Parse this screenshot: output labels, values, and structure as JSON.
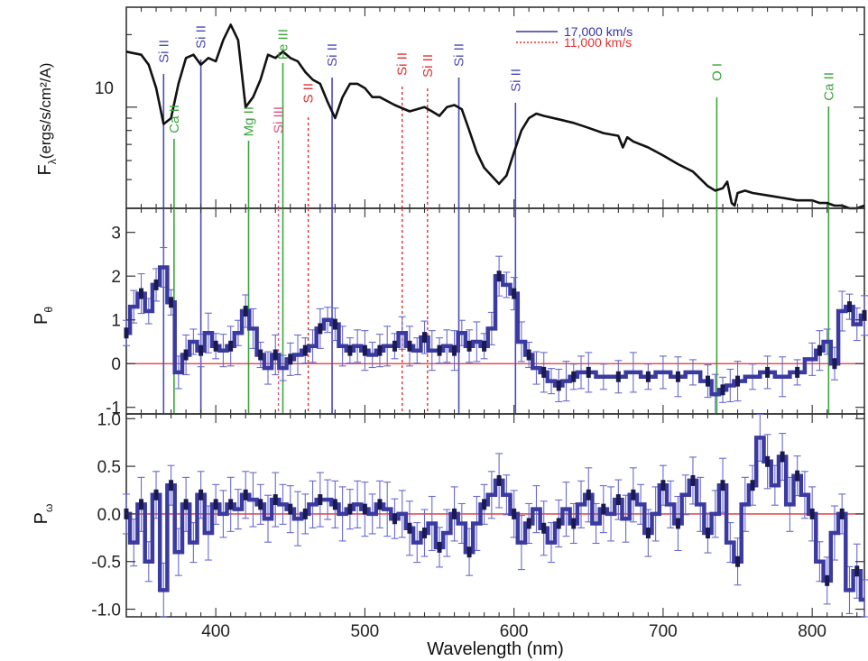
{
  "chart_data": [
    {
      "type": "line",
      "panel": "flux",
      "ylabel": "F",
      "ylabel_sub": "λ",
      "ylabel_units": "(ergs/s/cm²/A)",
      "y_tick": "10",
      "x_range": [
        340,
        835
      ],
      "y_range": [
        3.8,
        26
      ],
      "y_scale": "log",
      "series": [
        {
          "x": [
            340,
            350,
            355,
            360,
            365,
            370,
            375,
            380,
            385,
            390,
            395,
            400,
            405,
            410,
            415,
            420,
            425,
            430,
            435,
            440,
            445,
            450,
            455,
            460,
            465,
            470,
            475,
            480,
            485,
            490,
            495,
            500,
            505,
            510,
            520,
            530,
            540,
            545,
            550,
            555,
            560,
            565,
            570,
            575,
            580,
            590,
            595,
            600,
            605,
            610,
            615,
            620,
            630,
            640,
            650,
            660,
            670,
            673,
            676,
            680,
            690,
            700,
            710,
            720,
            730,
            735,
            740,
            743,
            746,
            748,
            750,
            755,
            760,
            770,
            780,
            790,
            800,
            805,
            810,
            815,
            820,
            825,
            830,
            835
          ],
          "y": [
            17,
            16.5,
            15,
            12,
            8.5,
            9,
            12.5,
            16,
            16.5,
            15,
            16,
            15.5,
            19,
            22,
            19,
            10,
            11,
            13,
            16.5,
            16,
            17,
            16,
            15.5,
            14,
            13,
            12.5,
            10.5,
            9,
            11,
            12.5,
            12.5,
            12,
            11,
            11,
            10.2,
            9.6,
            10,
            9.6,
            9.2,
            10,
            10.2,
            9.8,
            8,
            6.5,
            5.6,
            4.8,
            5.2,
            6.5,
            8,
            9,
            9.4,
            9.2,
            8.9,
            8.6,
            8.2,
            7.8,
            7.6,
            6.8,
            7.5,
            7.2,
            6.8,
            6.3,
            5.8,
            5.4,
            4.7,
            4.5,
            4.6,
            4.9,
            4,
            3.9,
            4.4,
            4.5,
            4.4,
            4.3,
            4.2,
            4.1,
            4.1,
            4,
            4,
            3.9,
            3.9,
            3.8,
            3.8,
            3.9
          ],
          "color": "#111111"
        }
      ],
      "legend": [
        {
          "label": "17,000 km/s",
          "color": "#3333aa",
          "style": "solid"
        },
        {
          "label": "11,000 km/s",
          "color": "#e03030",
          "style": "dotted"
        }
      ],
      "annotations": [
        {
          "label": "Si II",
          "x": 365,
          "color": "#4a4ab8",
          "style": "solid",
          "group": "17000"
        },
        {
          "label": "Ca II",
          "x": 372,
          "color": "#3aa63a",
          "style": "solid",
          "group": "17000"
        },
        {
          "label": "Si II",
          "x": 390,
          "color": "#4a4ab8",
          "style": "solid",
          "group": "17000"
        },
        {
          "label": "Mg II",
          "x": 422,
          "color": "#3aa63a",
          "style": "solid",
          "group": "17000"
        },
        {
          "label": "Fe III",
          "x": 445,
          "color": "#3aa63a",
          "style": "solid",
          "group": "17000"
        },
        {
          "label": "Si III",
          "x": 442,
          "color": "#e05080",
          "style": "dotted",
          "group": "11000"
        },
        {
          "label": "S II",
          "x": 462,
          "color": "#e03030",
          "style": "dotted",
          "group": "11000"
        },
        {
          "label": "Si II",
          "x": 478,
          "color": "#4a4ab8",
          "style": "solid",
          "group": "17000"
        },
        {
          "label": "Si II",
          "x": 525,
          "color": "#e03030",
          "style": "dotted",
          "group": "11000"
        },
        {
          "label": "Si II",
          "x": 542,
          "color": "#e03030",
          "style": "dotted",
          "group": "11000"
        },
        {
          "label": "Si II",
          "x": 563,
          "color": "#4a4ab8",
          "style": "solid",
          "group": "17000"
        },
        {
          "label": "Si II",
          "x": 601,
          "color": "#4a4ab8",
          "style": "solid",
          "group": "17000"
        },
        {
          "label": "O I",
          "x": 736,
          "color": "#3aa63a",
          "style": "solid",
          "group": "17000"
        },
        {
          "label": "Ca II",
          "x": 811,
          "color": "#3aa63a",
          "style": "solid",
          "group": "17000"
        }
      ]
    },
    {
      "type": "line",
      "panel": "p_theta",
      "ylabel": "P",
      "ylabel_sub": "θ",
      "x_range": [
        340,
        835
      ],
      "y_range": [
        -1.15,
        3.55
      ],
      "y_ticks": [
        "3",
        "2",
        "1",
        "0",
        "-1"
      ],
      "y_tick_values": [
        3,
        2,
        1,
        0,
        -1
      ],
      "zero_line_color": "#e03030",
      "series": [
        {
          "x": [
            340,
            345,
            350,
            355,
            360,
            365,
            370,
            375,
            380,
            385,
            390,
            395,
            400,
            405,
            410,
            415,
            420,
            425,
            430,
            435,
            440,
            445,
            450,
            455,
            460,
            465,
            470,
            475,
            480,
            485,
            490,
            495,
            500,
            505,
            510,
            515,
            520,
            525,
            530,
            535,
            540,
            545,
            550,
            555,
            560,
            565,
            570,
            575,
            580,
            585,
            590,
            595,
            600,
            605,
            610,
            615,
            620,
            625,
            630,
            635,
            640,
            645,
            650,
            660,
            670,
            680,
            690,
            700,
            710,
            720,
            730,
            735,
            740,
            745,
            750,
            760,
            770,
            780,
            790,
            800,
            805,
            810,
            815,
            820,
            825,
            830,
            835
          ],
          "y": [
            0.7,
            1.3,
            1.6,
            1.2,
            1.8,
            2.2,
            1.4,
            -0.2,
            0.2,
            0.5,
            0.3,
            0.7,
            0.4,
            0.3,
            0.4,
            0.7,
            1.2,
            0.8,
            0.2,
            -0.1,
            0.2,
            -0.1,
            0.1,
            0.2,
            0.3,
            0.4,
            0.8,
            1.0,
            0.9,
            0.4,
            0.3,
            0.4,
            0.3,
            0.2,
            0.3,
            0.4,
            0.4,
            0.7,
            0.4,
            0.3,
            0.6,
            0.3,
            0.3,
            0.4,
            0.3,
            0.7,
            0.4,
            0.5,
            0.4,
            0.8,
            2.0,
            1.8,
            1.6,
            0.5,
            0.2,
            -0.1,
            -0.2,
            -0.4,
            -0.5,
            -0.4,
            -0.3,
            -0.2,
            -0.2,
            -0.3,
            -0.3,
            -0.2,
            -0.3,
            -0.2,
            -0.3,
            -0.2,
            -0.4,
            -0.7,
            -0.6,
            -0.5,
            -0.4,
            -0.3,
            -0.2,
            -0.3,
            -0.2,
            0.1,
            0.3,
            0.5,
            0.0,
            1.2,
            1.3,
            0.9,
            1.1
          ],
          "color": "#3a3aa0",
          "errorbar_color": "#6a6ad0"
        }
      ]
    },
    {
      "type": "line",
      "panel": "p_omega",
      "ylabel": "P",
      "ylabel_sub": "ω",
      "xlabel": "Wavelength (nm)",
      "x_range": [
        340,
        835
      ],
      "y_range": [
        -1.08,
        1.05
      ],
      "x_ticks": [
        "400",
        "500",
        "600",
        "700",
        "800"
      ],
      "x_tick_values": [
        400,
        500,
        600,
        700,
        800
      ],
      "y_ticks": [
        "1.0",
        "0.5",
        "0.0",
        "-0.5",
        "-1.0"
      ],
      "y_tick_values": [
        1.0,
        0.5,
        0.0,
        -0.5,
        -1.0
      ],
      "zero_line_color": "#e03030",
      "series": [
        {
          "x": [
            340,
            345,
            350,
            355,
            360,
            365,
            370,
            375,
            380,
            385,
            390,
            395,
            400,
            405,
            410,
            415,
            420,
            425,
            430,
            435,
            440,
            445,
            450,
            455,
            460,
            465,
            470,
            475,
            480,
            485,
            490,
            495,
            500,
            505,
            510,
            515,
            520,
            525,
            530,
            535,
            540,
            545,
            550,
            555,
            560,
            565,
            570,
            575,
            580,
            585,
            590,
            595,
            600,
            605,
            610,
            615,
            620,
            625,
            630,
            635,
            640,
            645,
            650,
            655,
            660,
            665,
            670,
            675,
            680,
            685,
            690,
            695,
            700,
            705,
            710,
            715,
            720,
            725,
            730,
            735,
            740,
            745,
            750,
            755,
            760,
            765,
            770,
            775,
            780,
            785,
            790,
            795,
            800,
            805,
            810,
            815,
            820,
            825,
            830,
            835
          ],
          "y": [
            0.0,
            -0.3,
            0.1,
            -0.5,
            0.2,
            -0.8,
            0.3,
            -0.4,
            0.1,
            -0.3,
            0.2,
            -0.2,
            0.1,
            0.0,
            0.1,
            0.05,
            0.2,
            0.15,
            0.1,
            -0.05,
            0.15,
            0.1,
            0.05,
            -0.05,
            0.0,
            0.1,
            0.15,
            0.15,
            0.1,
            0.0,
            0.05,
            0.1,
            0.05,
            0.0,
            0.1,
            0.05,
            -0.05,
            0.0,
            -0.15,
            -0.3,
            -0.2,
            -0.1,
            -0.35,
            -0.2,
            0.0,
            -0.1,
            -0.4,
            -0.1,
            0.1,
            0.2,
            0.35,
            0.2,
            0.0,
            -0.3,
            -0.1,
            0.05,
            -0.15,
            -0.3,
            -0.1,
            0.05,
            -0.1,
            0.1,
            0.2,
            -0.1,
            0.05,
            0.0,
            0.15,
            -0.05,
            0.2,
            0.1,
            -0.2,
            0.0,
            0.3,
            0.1,
            -0.1,
            0.2,
            0.35,
            0.1,
            -0.2,
            0.0,
            0.3,
            -0.3,
            -0.5,
            0.1,
            0.3,
            0.8,
            0.55,
            0.3,
            0.6,
            0.1,
            0.4,
            0.2,
            0.0,
            -0.5,
            -0.7,
            -0.2,
            0.0,
            -0.8,
            -0.6,
            -0.9
          ],
          "color": "#3a3aa0",
          "errorbar_color": "#6a6ad0"
        }
      ]
    }
  ]
}
